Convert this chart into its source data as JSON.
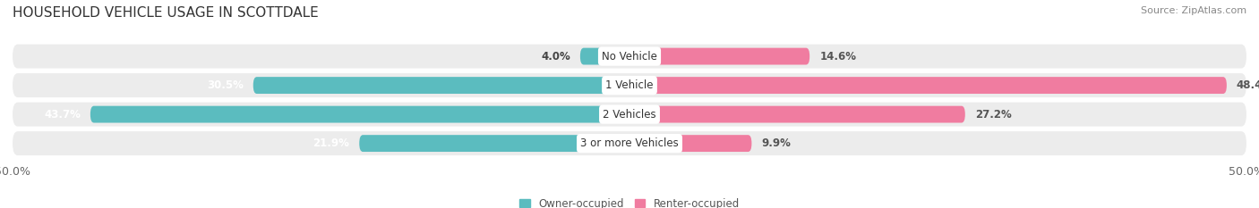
{
  "title": "HOUSEHOLD VEHICLE USAGE IN SCOTTDALE",
  "source": "Source: ZipAtlas.com",
  "categories": [
    "No Vehicle",
    "1 Vehicle",
    "2 Vehicles",
    "3 or more Vehicles"
  ],
  "owner_values": [
    4.0,
    30.5,
    43.7,
    21.9
  ],
  "renter_values": [
    14.6,
    48.4,
    27.2,
    9.9
  ],
  "owner_color": "#5bbcbf",
  "renter_color": "#f07ca0",
  "bar_bg_color": "#ececec",
  "owner_label": "Owner-occupied",
  "renter_label": "Renter-occupied",
  "xlim": [
    -50,
    50
  ],
  "bar_height": 0.58,
  "fig_bg_color": "#ffffff",
  "title_fontsize": 11,
  "source_fontsize": 8,
  "label_fontsize": 8.5,
  "category_fontsize": 8.5,
  "axis_fontsize": 9
}
